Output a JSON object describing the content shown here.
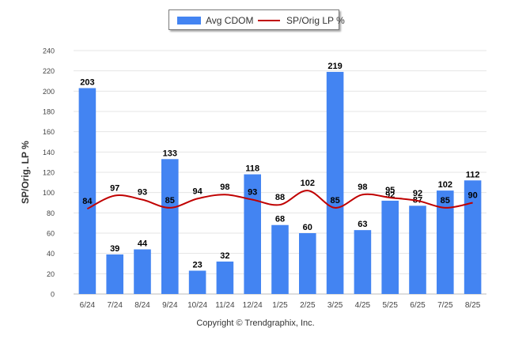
{
  "chart_data": {
    "type": "bar",
    "categories": [
      "6/24",
      "7/24",
      "8/24",
      "9/24",
      "10/24",
      "11/24",
      "12/24",
      "1/25",
      "2/25",
      "3/25",
      "4/25",
      "5/25",
      "6/25",
      "7/25",
      "8/25"
    ],
    "series": [
      {
        "name": "Avg CDOM",
        "type": "bar",
        "color": "#4384f2",
        "values": [
          203,
          39,
          44,
          133,
          23,
          32,
          118,
          68,
          60,
          219,
          63,
          92,
          87,
          102,
          112
        ]
      },
      {
        "name": "SP/Orig LP %",
        "type": "line",
        "color": "#c00000",
        "values": [
          84,
          97,
          93,
          85,
          94,
          98,
          93,
          88,
          102,
          85,
          98,
          95,
          92,
          85,
          90
        ]
      }
    ],
    "ylabel": "SP/Orig. LP %",
    "ylim": [
      0,
      240
    ],
    "yticks": [
      0,
      20,
      40,
      60,
      80,
      100,
      120,
      140,
      160,
      180,
      200,
      220,
      240
    ],
    "grid": true,
    "legend_position": "top-center"
  },
  "legend": {
    "bar_label": "Avg CDOM",
    "line_label": "SP/Orig LP %"
  },
  "footer": {
    "copyright": "Copyright © Trendgraphix, Inc."
  }
}
